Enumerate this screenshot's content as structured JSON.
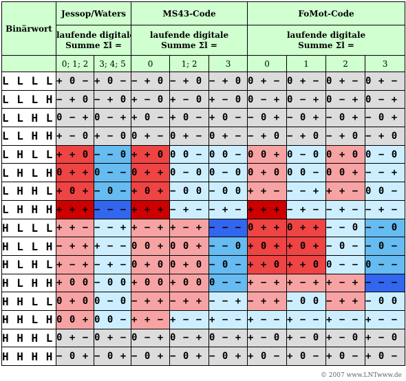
{
  "colors": {
    "header": "#d0ffd0",
    "gray": "#dcdcdc",
    "red_dark": "#cc0000",
    "red_mid": "#ee4444",
    "red_light": "#f7a3a3",
    "blue_dark": "#3366ee",
    "blue_mid": "#66bbf0",
    "blue_light": "#cceeff"
  },
  "header": {
    "binword": "Binärwort",
    "groups": [
      "Jessop/Waters",
      "MS43-Code",
      "FoMot-Code"
    ],
    "sum_line1": "laufende digitale",
    "sum_line2": "Summe  Σl =",
    "subs": [
      "0; 1; 2",
      "3; 4; 5",
      "0",
      "1; 2",
      "3",
      "0",
      "1",
      "2",
      "3"
    ]
  },
  "rows": [
    {
      "word": "LLLL",
      "cells": [
        [
          "+0−",
          "gray"
        ],
        [
          "+0−",
          "gray"
        ],
        [
          "−+0",
          "gray"
        ],
        [
          "−+0",
          "gray"
        ],
        [
          "−+0",
          "gray"
        ],
        [
          "0+−",
          "gray"
        ],
        [
          "0+−",
          "gray"
        ],
        [
          "0+−",
          "gray"
        ],
        [
          "0+−",
          "gray"
        ]
      ]
    },
    {
      "word": "LLLH",
      "cells": [
        [
          "−+0",
          "gray"
        ],
        [
          "−+0",
          "gray"
        ],
        [
          "+−0",
          "gray"
        ],
        [
          "+−0",
          "gray"
        ],
        [
          "+−0",
          "gray"
        ],
        [
          "0−+",
          "gray"
        ],
        [
          "0−+",
          "gray"
        ],
        [
          "0−+",
          "gray"
        ],
        [
          "0−+",
          "gray"
        ]
      ]
    },
    {
      "word": "LLHL",
      "cells": [
        [
          "0−+",
          "gray"
        ],
        [
          "0−+",
          "gray"
        ],
        [
          "+0−",
          "gray"
        ],
        [
          "+0−",
          "gray"
        ],
        [
          "+0−",
          "gray"
        ],
        [
          "−0+",
          "gray"
        ],
        [
          "−0+",
          "gray"
        ],
        [
          "−0+",
          "gray"
        ],
        [
          "−0+",
          "gray"
        ]
      ]
    },
    {
      "word": "LLHH",
      "cells": [
        [
          "+−0",
          "gray"
        ],
        [
          "+−0",
          "gray"
        ],
        [
          "0+−",
          "gray"
        ],
        [
          "0+−",
          "gray"
        ],
        [
          "0+−",
          "gray"
        ],
        [
          "−+0",
          "gray"
        ],
        [
          "−+0",
          "gray"
        ],
        [
          "−+0",
          "gray"
        ],
        [
          "−+0",
          "gray"
        ]
      ]
    },
    {
      "word": "LHLL",
      "cells": [
        [
          "++0",
          "red_mid"
        ],
        [
          "−−0",
          "blue_mid"
        ],
        [
          "++0",
          "red_mid"
        ],
        [
          "00−",
          "blue_light"
        ],
        [
          "00−",
          "blue_light"
        ],
        [
          "00+",
          "red_light"
        ],
        [
          "0−0",
          "blue_light"
        ],
        [
          "0+0",
          "red_light"
        ],
        [
          "0−0",
          "blue_light"
        ]
      ]
    },
    {
      "word": "LHLH",
      "cells": [
        [
          "0++",
          "red_mid"
        ],
        [
          "0−−",
          "blue_mid"
        ],
        [
          "0++",
          "red_mid"
        ],
        [
          "0−0",
          "blue_light"
        ],
        [
          "0−0",
          "blue_light"
        ],
        [
          "0+0",
          "red_light"
        ],
        [
          "00−",
          "blue_light"
        ],
        [
          "00+",
          "red_light"
        ],
        [
          "−−+",
          "blue_light"
        ]
      ]
    },
    {
      "word": "LHHL",
      "cells": [
        [
          "+0+",
          "red_mid"
        ],
        [
          "−0−",
          "blue_mid"
        ],
        [
          "+0+",
          "red_mid"
        ],
        [
          "−00",
          "blue_light"
        ],
        [
          "−00",
          "blue_light"
        ],
        [
          "++−",
          "red_light"
        ],
        [
          "−−+",
          "blue_light"
        ],
        [
          "++−",
          "red_light"
        ],
        [
          "00−",
          "blue_light"
        ]
      ]
    },
    {
      "word": "LHHH",
      "cells": [
        [
          "+++",
          "red_dark"
        ],
        [
          "−−−",
          "blue_dark"
        ],
        [
          "+++",
          "red_dark"
        ],
        [
          "−+−",
          "blue_light"
        ],
        [
          "−+−",
          "blue_light"
        ],
        [
          "+++",
          "red_dark"
        ],
        [
          "−+−",
          "blue_light"
        ],
        [
          "−+−",
          "blue_light"
        ],
        [
          "−+−",
          "blue_light"
        ]
      ]
    },
    {
      "word": "HLLL",
      "cells": [
        [
          "++−",
          "red_light"
        ],
        [
          "−−+",
          "blue_light"
        ],
        [
          "+−+",
          "red_light"
        ],
        [
          "+−+",
          "red_light"
        ],
        [
          "−−−",
          "blue_dark"
        ],
        [
          "0++",
          "red_mid"
        ],
        [
          "0++",
          "red_mid"
        ],
        [
          "−−0",
          "blue_light"
        ],
        [
          "−−0",
          "blue_mid"
        ]
      ]
    },
    {
      "word": "HLLH",
      "cells": [
        [
          "−++",
          "red_light"
        ],
        [
          "+−−",
          "blue_light"
        ],
        [
          "00+",
          "red_light"
        ],
        [
          "00+",
          "red_light"
        ],
        [
          "−−0",
          "blue_mid"
        ],
        [
          "+0+",
          "red_mid"
        ],
        [
          "+0+",
          "red_mid"
        ],
        [
          "−0−",
          "blue_light"
        ],
        [
          "−0−",
          "blue_mid"
        ]
      ]
    },
    {
      "word": "HLHL",
      "cells": [
        [
          "+−+",
          "red_light"
        ],
        [
          "−+−",
          "blue_light"
        ],
        [
          "0+0",
          "red_light"
        ],
        [
          "0+0",
          "red_light"
        ],
        [
          "−0−",
          "blue_mid"
        ],
        [
          "++0",
          "red_mid"
        ],
        [
          "++0",
          "red_mid"
        ],
        [
          "0−−",
          "blue_light"
        ],
        [
          "0−−",
          "blue_mid"
        ]
      ]
    },
    {
      "word": "HLHH",
      "cells": [
        [
          "+00",
          "red_light"
        ],
        [
          "−00",
          "blue_light"
        ],
        [
          "+00",
          "red_light"
        ],
        [
          "+00",
          "red_light"
        ],
        [
          "0−−",
          "blue_mid"
        ],
        [
          "+−+",
          "red_light"
        ],
        [
          "+−+",
          "red_light"
        ],
        [
          "+−+",
          "red_light"
        ],
        [
          "−−−",
          "blue_dark"
        ]
      ]
    },
    {
      "word": "HHLL",
      "cells": [
        [
          "0+0",
          "red_light"
        ],
        [
          "0−0",
          "blue_light"
        ],
        [
          "−++",
          "red_light"
        ],
        [
          "−++",
          "red_light"
        ],
        [
          "−−+",
          "blue_light"
        ],
        [
          "−++",
          "red_light"
        ],
        [
          "−00",
          "blue_light"
        ],
        [
          "−++",
          "red_light"
        ],
        [
          "−00",
          "blue_light"
        ]
      ]
    },
    {
      "word": "HHLH",
      "cells": [
        [
          "00+",
          "red_light"
        ],
        [
          "00−",
          "blue_light"
        ],
        [
          "++−",
          "red_light"
        ],
        [
          "+−−",
          "blue_light"
        ],
        [
          "+−−",
          "blue_light"
        ],
        [
          "+−−",
          "blue_light"
        ],
        [
          "+−−",
          "blue_light"
        ],
        [
          "+−−",
          "blue_light"
        ],
        [
          "+−−",
          "blue_light"
        ]
      ]
    },
    {
      "word": "HHHL",
      "cells": [
        [
          "0+−",
          "gray"
        ],
        [
          "0+−",
          "gray"
        ],
        [
          "0−+",
          "gray"
        ],
        [
          "0−+",
          "gray"
        ],
        [
          "0−+",
          "gray"
        ],
        [
          "+−0",
          "gray"
        ],
        [
          "+−0",
          "gray"
        ],
        [
          "+−0",
          "gray"
        ],
        [
          "+−0",
          "gray"
        ]
      ]
    },
    {
      "word": "HHHH",
      "cells": [
        [
          "−0+",
          "gray"
        ],
        [
          "−0+",
          "gray"
        ],
        [
          "−0+",
          "gray"
        ],
        [
          "−0+",
          "gray"
        ],
        [
          "−0+",
          "gray"
        ],
        [
          "+0−",
          "gray"
        ],
        [
          "+0−",
          "gray"
        ],
        [
          "+0−",
          "gray"
        ],
        [
          "+0−",
          "gray"
        ]
      ]
    }
  ],
  "footer": "© 2007 www.LNTwww.de"
}
